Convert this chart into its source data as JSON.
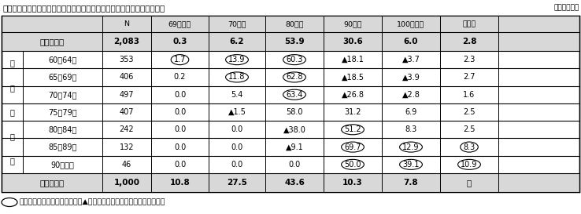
{
  "title": "表１　何歳まで生きたいと思うか（高齢者調査・中年層調査）〔年齢別〕",
  "unit": "（単位：％）",
  "col_labels": [
    "N",
    "69歳以下",
    "70歳代",
    "80歳代",
    "90歳代",
    "100歳以上",
    "無回答"
  ],
  "vertical_label": "本\n人\n年\n齢\n別",
  "rows": [
    {
      "type": "bold",
      "label": "高齢者全体",
      "vals": [
        "2,083",
        "0.3",
        "6.2",
        "53.9",
        "30.6",
        "6.0",
        "2.8"
      ],
      "circles": []
    },
    {
      "type": "age",
      "label": "60～64歳",
      "vals": [
        "353",
        "1.7",
        "13.9",
        "60.3",
        "▲18.1",
        "▲3.7",
        "2.3"
      ],
      "circles": [
        1,
        2,
        3
      ]
    },
    {
      "type": "age",
      "label": "65～69歳",
      "vals": [
        "406",
        "0.2",
        "11.8",
        "62.8",
        "▲18.5",
        "▲3.9",
        "2.7"
      ],
      "circles": [
        2,
        3
      ]
    },
    {
      "type": "age",
      "label": "70～74歳",
      "vals": [
        "497",
        "0.0",
        "5.4",
        "63.4",
        "▲26.8",
        "▲2.8",
        "1.6"
      ],
      "circles": [
        3
      ]
    },
    {
      "type": "age",
      "label": "75～79歳",
      "vals": [
        "407",
        "0.0",
        "▲1.5",
        "58.0",
        "31.2",
        "6.9",
        "2.5"
      ],
      "circles": []
    },
    {
      "type": "age",
      "label": "80～84歳",
      "vals": [
        "242",
        "0.0",
        "0.0",
        "▲38.0",
        "51.2",
        "8.3",
        "2.5"
      ],
      "circles": [
        4
      ]
    },
    {
      "type": "age",
      "label": "85～89歳",
      "vals": [
        "132",
        "0.0",
        "0.0",
        "▲9.1",
        "69.7",
        "12.9",
        "8.3"
      ],
      "circles": [
        4,
        5,
        6
      ]
    },
    {
      "type": "age",
      "label": "90歳以上",
      "vals": [
        "46",
        "0.0",
        "0.0",
        "0.0",
        "50.0",
        "39.1",
        "10.9"
      ],
      "circles": [
        4,
        5,
        6
      ]
    },
    {
      "type": "bold",
      "label": "中年層全体",
      "vals": [
        "1,000",
        "10.8",
        "27.5",
        "43.6",
        "10.3",
        "7.8",
        "－"
      ],
      "circles": []
    }
  ],
  "footnote": "は、全体に比べて有意に高く、▲は、有意に低い（以下の図表も同様）",
  "gray_bg": "#d8d8d8",
  "white_bg": "#ffffff",
  "line_color": "#000000"
}
